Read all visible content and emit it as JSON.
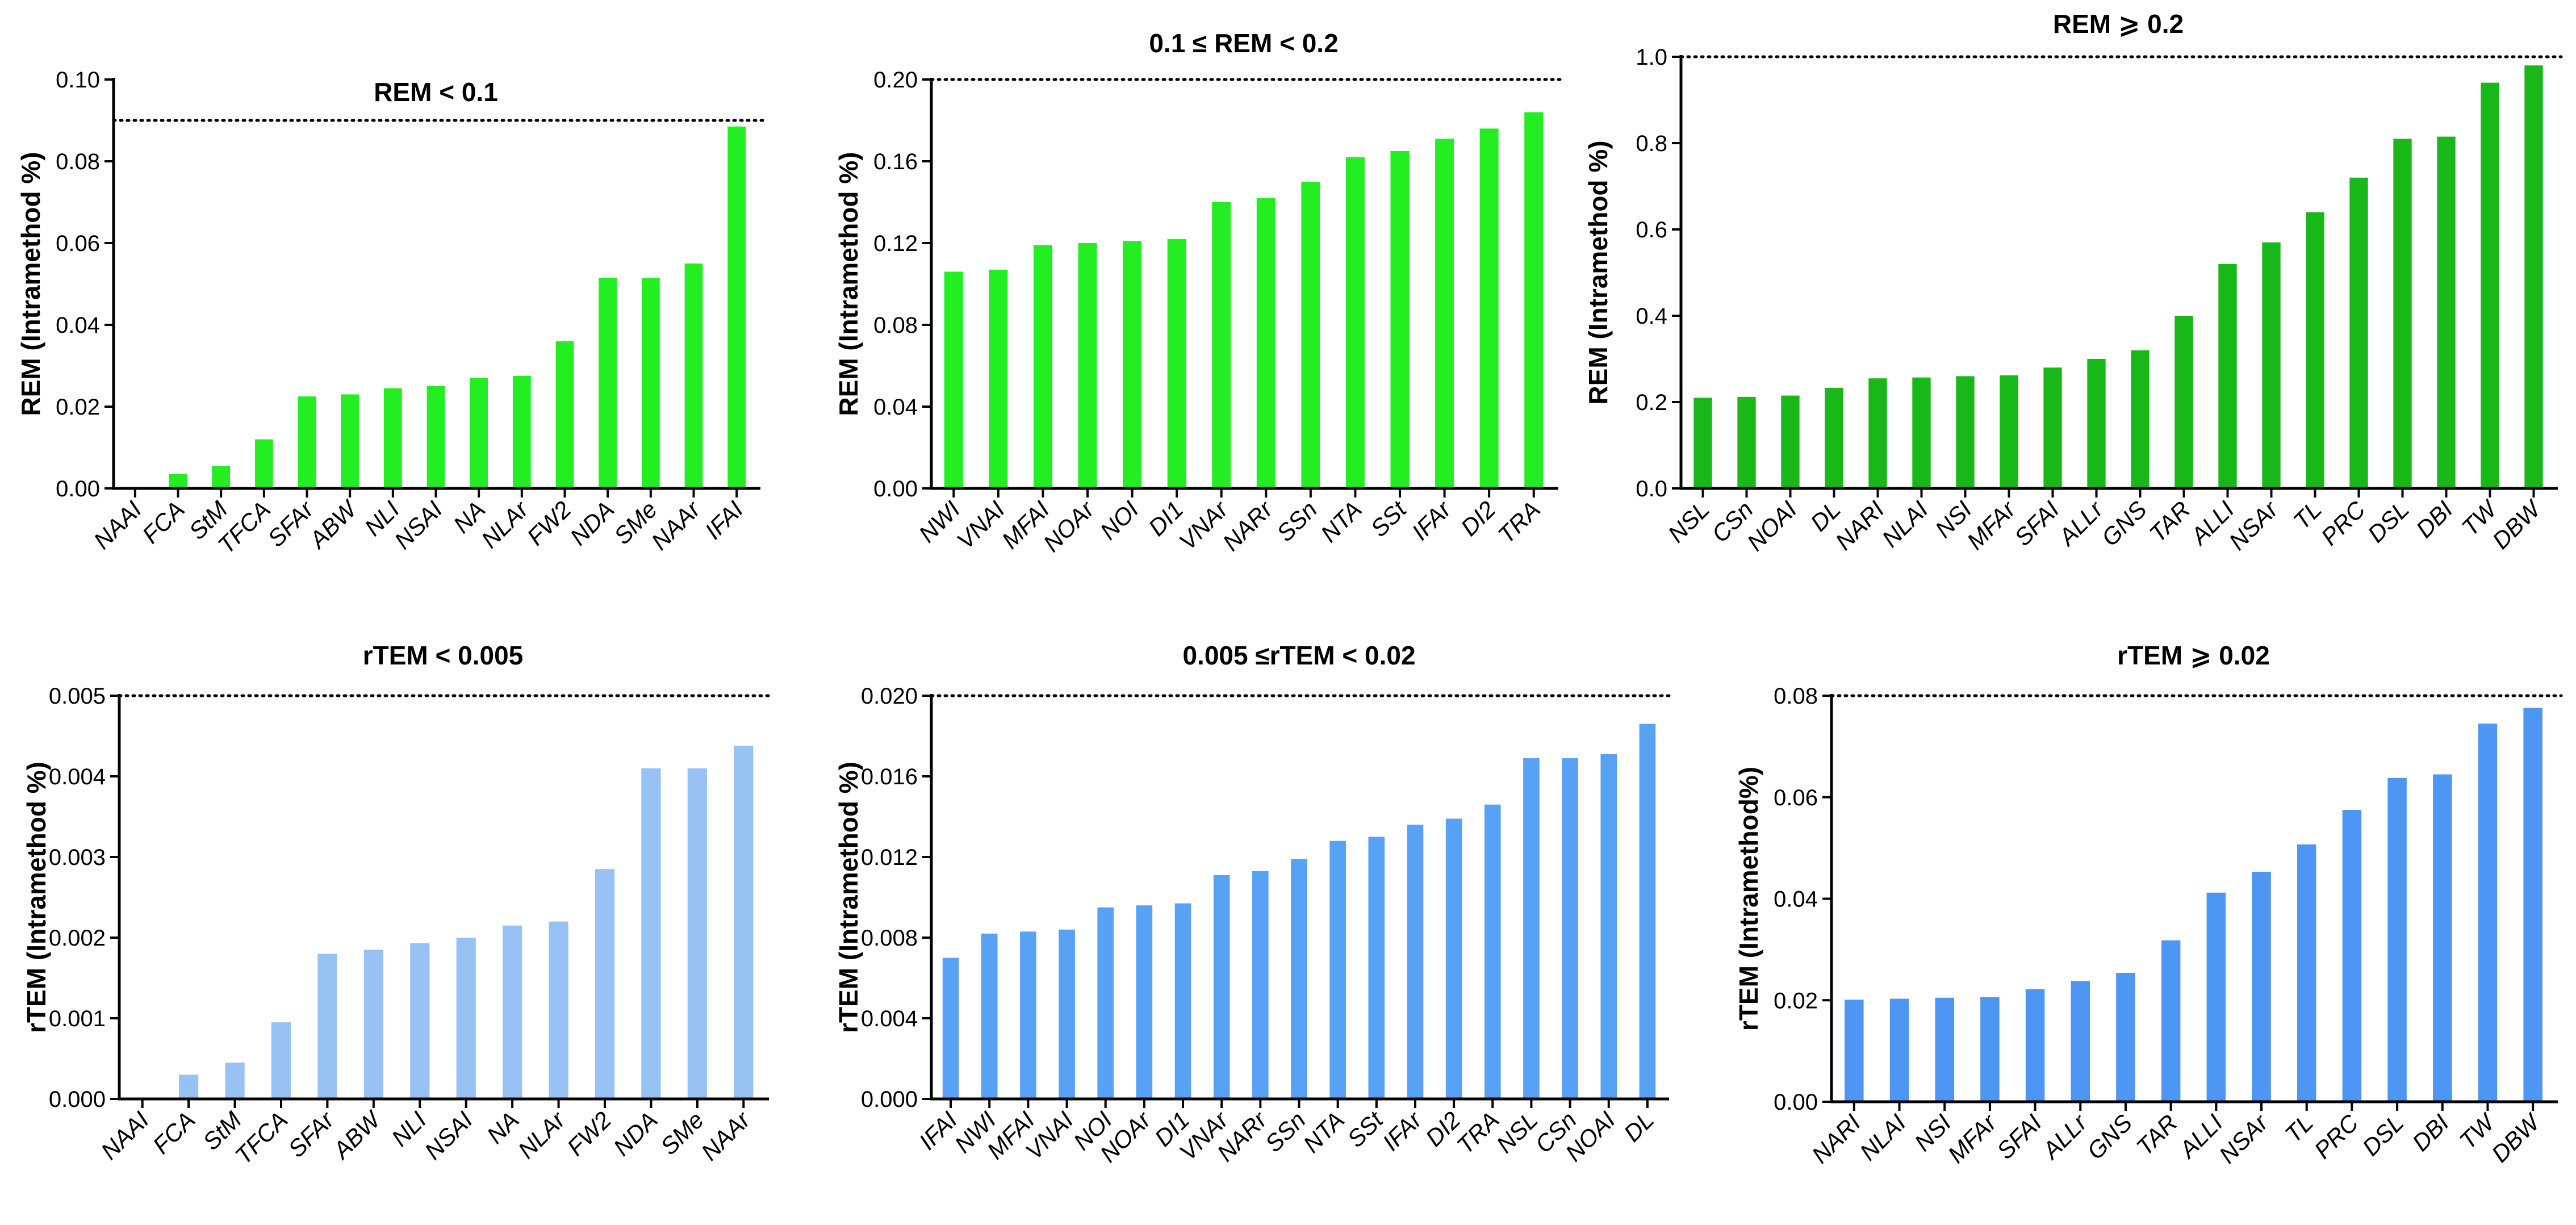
{
  "chart_data": [
    {
      "type": "bar",
      "title": "REM < 0.1",
      "ylabel": "REM (Intramethod %)",
      "xlabel": "",
      "ylim": [
        0,
        0.1
      ],
      "yticks": [
        "0.00",
        "0.02",
        "0.04",
        "0.06",
        "0.08",
        "0.10"
      ],
      "threshold": 0.09,
      "color": "#22ee22",
      "categories": [
        "NAAI",
        "FCA",
        "StM",
        "TFCA",
        "SFAr",
        "ABW",
        "NLI",
        "NSAI",
        "NA",
        "NLAr",
        "FW2",
        "NDA",
        "SMe",
        "NAAr",
        "IFAI"
      ],
      "values": [
        0.0,
        0.0035,
        0.0055,
        0.012,
        0.0225,
        0.023,
        0.0245,
        0.025,
        0.027,
        0.0275,
        0.036,
        0.0515,
        0.0515,
        0.055,
        0.0885
      ]
    },
    {
      "type": "bar",
      "title": "0.1 ≤ REM < 0.2",
      "ylabel": "REM (Intramethod %)",
      "xlabel": "",
      "ylim": [
        0,
        0.2
      ],
      "yticks": [
        "0.00",
        "0.04",
        "0.08",
        "0.12",
        "0.16",
        "0.20"
      ],
      "threshold": 0.2,
      "color": "#22ee22",
      "categories": [
        "NWI",
        "VNAI",
        "MFAI",
        "NOAr",
        "NOI",
        "DI1",
        "VNAr",
        "NARr",
        "SSn",
        "NTA",
        "SSt",
        "IFAr",
        "DI2",
        "TRA"
      ],
      "values": [
        0.106,
        0.107,
        0.119,
        0.12,
        0.121,
        0.122,
        0.14,
        0.142,
        0.15,
        0.162,
        0.165,
        0.171,
        0.176,
        0.184
      ]
    },
    {
      "type": "bar",
      "title": "REM ⩾ 0.2",
      "ylabel": "REM (Intramethod %)",
      "xlabel": "",
      "ylim": [
        0,
        1.0
      ],
      "yticks": [
        "0.0",
        "0.2",
        "0.4",
        "0.6",
        "0.8",
        "1.0"
      ],
      "threshold": 1.0,
      "color": "#18b818",
      "categories": [
        "NSL",
        "CSn",
        "NOAI",
        "DL",
        "NARI",
        "NLAI",
        "NSI",
        "MFAr",
        "SFAI",
        "ALLr",
        "GNS",
        "TAR",
        "ALLI",
        "NSAr",
        "TL",
        "PRC",
        "DSL",
        "DBI",
        "TW",
        "DBW"
      ],
      "values": [
        0.21,
        0.212,
        0.215,
        0.233,
        0.255,
        0.257,
        0.26,
        0.262,
        0.28,
        0.3,
        0.32,
        0.4,
        0.52,
        0.57,
        0.64,
        0.72,
        0.81,
        0.815,
        0.94,
        0.98
      ]
    },
    {
      "type": "bar",
      "title": "rTEM < 0.005",
      "ylabel": "rTEM (Intramethod %)",
      "xlabel": "",
      "ylim": [
        0,
        0.005
      ],
      "yticks": [
        "0.000",
        "0.001",
        "0.002",
        "0.003",
        "0.004",
        "0.005"
      ],
      "threshold": 0.005,
      "color": "#98c2f4",
      "categories": [
        "NAAI",
        "FCA",
        "StM",
        "TFCA",
        "SFAr",
        "ABW",
        "NLI",
        "NSAI",
        "NA",
        "NLAr",
        "FW2",
        "NDA",
        "SMe",
        "NAAr"
      ],
      "values": [
        0.0,
        0.0003,
        0.00045,
        0.00095,
        0.0018,
        0.00185,
        0.00193,
        0.002,
        0.00215,
        0.0022,
        0.00285,
        0.0041,
        0.0041,
        0.00438
      ]
    },
    {
      "type": "bar",
      "title": "0.005  ≤rTEM < 0.02",
      "ylabel": "rTEM (Intramethod %)",
      "xlabel": "",
      "ylim": [
        0,
        0.02
      ],
      "yticks": [
        "0.000",
        "0.004",
        "0.008",
        "0.012",
        "0.016",
        "0.020"
      ],
      "threshold": 0.02,
      "color": "#58a2f6",
      "categories": [
        "IFAI",
        "NWI",
        "MFAI",
        "VNAI",
        "NOI",
        "NOAr",
        "DI1",
        "VNAr",
        "NARr",
        "SSn",
        "NTA",
        "SSt",
        "IFAr",
        "DI2",
        "TRA",
        "NSL",
        "CSn",
        "NOAI",
        "DL"
      ],
      "values": [
        0.007,
        0.0082,
        0.0083,
        0.0084,
        0.0095,
        0.0096,
        0.0097,
        0.0111,
        0.0113,
        0.0119,
        0.0128,
        0.013,
        0.0136,
        0.0139,
        0.0146,
        0.0169,
        0.0169,
        0.0171,
        0.0186
      ]
    },
    {
      "type": "bar",
      "title": "rTEM ⩾ 0.02",
      "ylabel": "rTEM (Intramethod%)",
      "xlabel": "",
      "ylim": [
        0,
        0.08
      ],
      "yticks": [
        "0.00",
        "0.02",
        "0.04",
        "0.06",
        "0.08"
      ],
      "threshold": 0.08,
      "color": "#4d96f4",
      "categories": [
        "NARI",
        "NLAI",
        "NSI",
        "MFAr",
        "SFAI",
        "ALLr",
        "GNS",
        "TAR",
        "ALLI",
        "NSAr",
        "TL",
        "PRC",
        "DSL",
        "DBI",
        "TW",
        "DBW"
      ],
      "values": [
        0.0201,
        0.0203,
        0.0205,
        0.0206,
        0.0222,
        0.0238,
        0.0254,
        0.0318,
        0.0412,
        0.0453,
        0.0507,
        0.0575,
        0.0638,
        0.0645,
        0.0745,
        0.0776
      ]
    }
  ]
}
